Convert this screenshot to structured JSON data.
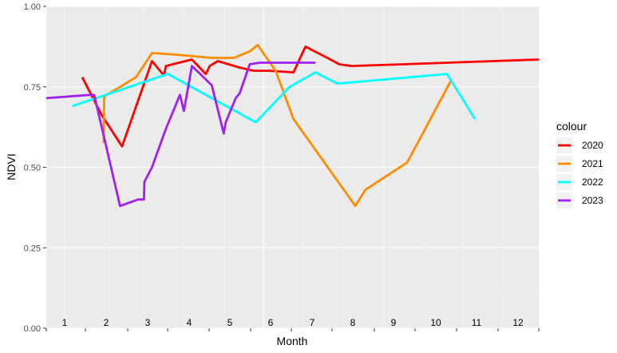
{
  "chart_data": {
    "type": "line",
    "xlabel": "Month",
    "ylabel": "NDVI",
    "xlim": [
      0.55,
      12.9
    ],
    "ylim": [
      0,
      1
    ],
    "yticks": [
      0,
      0.25,
      0.5,
      0.75,
      1
    ],
    "ytick_labels": [
      "0.00",
      "0.25",
      "0.50",
      "0.75",
      "1.00"
    ],
    "month_labels": [
      "1",
      "2",
      "3",
      "4",
      "5",
      "6",
      "7",
      "8",
      "9",
      "10",
      "11",
      "12"
    ],
    "grid": true,
    "legend": {
      "title": "colour",
      "position": "right"
    },
    "series": [
      {
        "name": "2020",
        "color": "#ff0000",
        "x": [
          1.45,
          1.95,
          2.45,
          3.2,
          3.5,
          3.55,
          4.2,
          4.55,
          4.65,
          4.85,
          5.4,
          5.75,
          6.15,
          6.75,
          7.05,
          7.6,
          7.9,
          8.2,
          9.5,
          12.9
        ],
        "y": [
          0.78,
          0.66,
          0.565,
          0.83,
          0.785,
          0.815,
          0.835,
          0.79,
          0.815,
          0.83,
          0.81,
          0.8,
          0.8,
          0.795,
          0.875,
          0.84,
          0.82,
          0.815,
          0.82,
          0.835
        ]
      },
      {
        "name": "2021",
        "color": "#ff8c00",
        "x": [
          1.99,
          2.0,
          2.8,
          3.2,
          3.8,
          4.7,
          5.25,
          5.65,
          5.85,
          6.3,
          6.75,
          8.3,
          8.55,
          9.6,
          10.7
        ],
        "y": [
          0.575,
          0.72,
          0.78,
          0.855,
          0.85,
          0.84,
          0.84,
          0.86,
          0.88,
          0.8,
          0.65,
          0.38,
          0.43,
          0.515,
          0.77
        ]
      },
      {
        "name": "2022",
        "color": "#00ffff",
        "x": [
          1.2,
          3.6,
          5.8,
          6.65,
          7.3,
          7.85,
          10.6,
          11.3
        ],
        "y": [
          0.69,
          0.79,
          0.64,
          0.75,
          0.795,
          0.76,
          0.79,
          0.65
        ]
      },
      {
        "name": "2023",
        "color": "#a020f0",
        "x": [
          0.55,
          1.65,
          1.75,
          2.4,
          2.85,
          3.0,
          3.01,
          3.2,
          3.55,
          3.9,
          4.0,
          4.2,
          4.7,
          5.0,
          5.05,
          5.3,
          5.4,
          5.65,
          5.9,
          6.7,
          7.3
        ],
        "y": [
          0.715,
          0.725,
          0.725,
          0.38,
          0.4,
          0.4,
          0.455,
          0.5,
          0.62,
          0.725,
          0.675,
          0.815,
          0.755,
          0.605,
          0.64,
          0.715,
          0.73,
          0.82,
          0.825,
          0.825,
          0.825
        ]
      }
    ]
  }
}
